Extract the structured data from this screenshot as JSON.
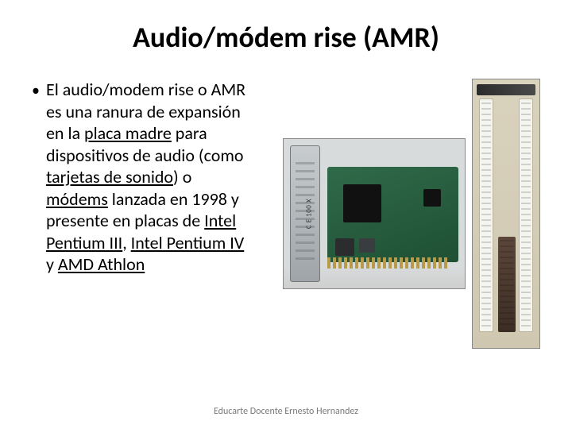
{
  "title": "Audio/módem rise (AMR)",
  "bullet": {
    "text_parts": [
      {
        "t": "El audio/modem rise o AMR es una ranura de expansión en la ",
        "link": false
      },
      {
        "t": "placa madre",
        "link": true
      },
      {
        "t": " para dispositivos de audio (como ",
        "link": false
      },
      {
        "t": "tarjetas de sonido",
        "link": true
      },
      {
        "t": ") o ",
        "link": false
      },
      {
        "t": "módems",
        "link": true
      },
      {
        "t": " lanzada en 1998 y presente en placas de ",
        "link": false
      },
      {
        "t": "Intel Pentium III",
        "link": true
      },
      {
        "t": ", ",
        "link": false
      },
      {
        "t": "Intel Pentium IV",
        "link": true
      },
      {
        "t": " y ",
        "link": false
      },
      {
        "t": "AMD Athlon",
        "link": true
      }
    ]
  },
  "images": {
    "card": {
      "bracket_label": "C E 100 X",
      "description": "AMR modem/audio expansion card with green PCB and metal bracket"
    },
    "slot": {
      "description": "Motherboard close-up showing brown AMR slot between white PCI slots"
    }
  },
  "footer": "Educarte Docente Ernesto Hernandez",
  "colors": {
    "background": "#ffffff",
    "text": "#000000",
    "footer_text": "#7a7a7a",
    "pcb_green": "#2f6a49",
    "bracket_metal": "#c8ccce",
    "mobo_tan": "#d9d2bd",
    "amr_slot": "#5c463a",
    "pci_slot": "#f5f5f0"
  }
}
